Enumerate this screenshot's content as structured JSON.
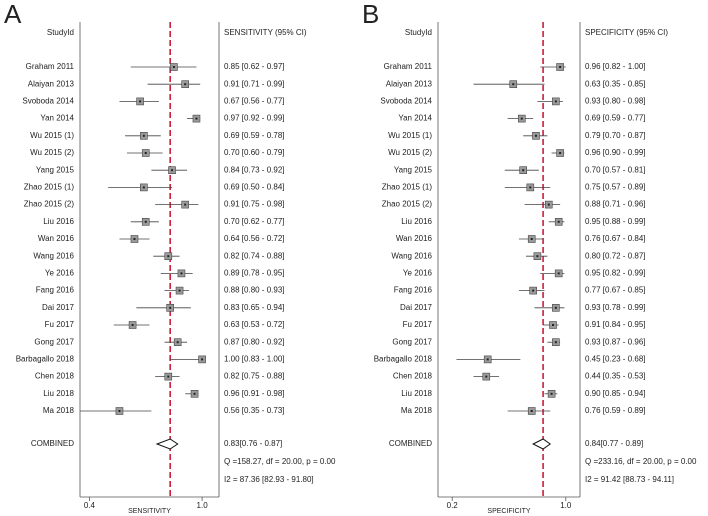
{
  "chart_data": [
    {
      "type": "forest",
      "panel_label": "A",
      "study_header": "StudyId",
      "estimate_header": "SENSITIVITY (95% CI)",
      "categories": [
        "Graham 2011",
        "Alaiyan 2013",
        "Svoboda 2014",
        "Yan 2014",
        "Wu 2015 (1)",
        "Wu 2015 (2)",
        "Yang 2015",
        "Zhao 2015 (1)",
        "Zhao 2015 (2)",
        "Liu 2016",
        "Wan 2016",
        "Wang 2016",
        "Ye 2016",
        "Fang 2016",
        "Dai 2017",
        "Fu 2017",
        "Gong 2017",
        "Barbagallo 2018",
        "Chen 2018",
        "Liu 2018",
        "Ma 2018"
      ],
      "values": [
        0.85,
        0.91,
        0.67,
        0.97,
        0.69,
        0.7,
        0.84,
        0.69,
        0.91,
        0.7,
        0.64,
        0.82,
        0.89,
        0.88,
        0.83,
        0.63,
        0.87,
        1.0,
        0.82,
        0.96,
        0.56
      ],
      "lower": [
        0.62,
        0.71,
        0.56,
        0.92,
        0.59,
        0.6,
        0.73,
        0.5,
        0.75,
        0.62,
        0.56,
        0.74,
        0.78,
        0.8,
        0.65,
        0.53,
        0.8,
        0.83,
        0.75,
        0.91,
        0.35
      ],
      "upper": [
        0.97,
        0.99,
        0.77,
        0.99,
        0.78,
        0.79,
        0.92,
        0.84,
        0.98,
        0.77,
        0.72,
        0.88,
        0.95,
        0.93,
        0.94,
        0.72,
        0.92,
        1.0,
        0.88,
        0.98,
        0.73
      ],
      "value_labels": [
        "0.85 [0.62 - 0.97]",
        "0.91 [0.71 - 0.99]",
        "0.67 [0.56 - 0.77]",
        "0.97 [0.92 - 0.99]",
        "0.69 [0.59 - 0.78]",
        "0.70 [0.60 - 0.79]",
        "0.84 [0.73 - 0.92]",
        "0.69 [0.50 - 0.84]",
        "0.91 [0.75 - 0.98]",
        "0.70 [0.62 - 0.77]",
        "0.64 [0.56 - 0.72]",
        "0.82 [0.74 - 0.88]",
        "0.89 [0.78 - 0.95]",
        "0.88 [0.80 - 0.93]",
        "0.83 [0.65 - 0.94]",
        "0.63 [0.53 - 0.72]",
        "0.87 [0.80 - 0.92]",
        "1.00 [0.83 - 1.00]",
        "0.82 [0.75 - 0.88]",
        "0.96 [0.91 - 0.98]",
        "0.56 [0.35 - 0.73]"
      ],
      "combined": {
        "label": "COMBINED",
        "value": 0.83,
        "lower": 0.76,
        "upper": 0.87,
        "value_label": "0.83[0.76 - 0.87]"
      },
      "statistics": [
        "Q =158.27, df = 20.00, p =  0.00",
        "I2 = 87.36 [82.93 - 91.80]"
      ],
      "xlabel": "SENSITIVITY",
      "xlim": [
        0.35,
        1.09
      ],
      "xticks": [
        0.4,
        {
          "value": 1,
          "label": "1.0"
        }
      ],
      "marker_color": "#9a9a9a",
      "line_color": "#c8102e"
    },
    {
      "type": "forest",
      "panel_label": "B",
      "study_header": "StudyId",
      "estimate_header": "SPECIFICITY (95% CI)",
      "categories": [
        "Graham 2011",
        "Alaiyan 2013",
        "Svoboda 2014",
        "Yan 2014",
        "Wu 2015 (1)",
        "Wu 2015 (2)",
        "Yang 2015",
        "Zhao 2015 (1)",
        "Zhao 2015 (2)",
        "Liu 2016",
        "Wan 2016",
        "Wang 2016",
        "Ye 2016",
        "Fang 2016",
        "Dai 2017",
        "Fu 2017",
        "Gong 2017",
        "Barbagallo 2018",
        "Chen 2018",
        "Liu 2018",
        "Ma 2018"
      ],
      "values": [
        0.96,
        0.63,
        0.93,
        0.69,
        0.79,
        0.96,
        0.7,
        0.75,
        0.88,
        0.95,
        0.76,
        0.8,
        0.95,
        0.77,
        0.93,
        0.91,
        0.93,
        0.45,
        0.44,
        0.9,
        0.76
      ],
      "lower": [
        0.82,
        0.35,
        0.8,
        0.59,
        0.7,
        0.9,
        0.57,
        0.57,
        0.71,
        0.88,
        0.67,
        0.72,
        0.82,
        0.67,
        0.78,
        0.84,
        0.87,
        0.23,
        0.35,
        0.85,
        0.59
      ],
      "upper": [
        1.0,
        0.85,
        0.98,
        0.77,
        0.87,
        0.99,
        0.81,
        0.89,
        0.96,
        0.99,
        0.84,
        0.87,
        0.99,
        0.85,
        0.99,
        0.95,
        0.96,
        0.68,
        0.53,
        0.94,
        0.89
      ],
      "value_labels": [
        "0.96 [0.82 - 1.00]",
        "0.63 [0.35 - 0.85]",
        "0.93 [0.80 - 0.98]",
        "0.69 [0.59 - 0.77]",
        "0.79 [0.70 - 0.87]",
        "0.96 [0.90 - 0.99]",
        "0.70 [0.57 - 0.81]",
        "0.75 [0.57 - 0.89]",
        "0.88 [0.71 - 0.96]",
        "0.95 [0.88 - 0.99]",
        "0.76 [0.67 - 0.84]",
        "0.80 [0.72 - 0.87]",
        "0.95 [0.82 - 0.99]",
        "0.77 [0.67 - 0.85]",
        "0.93 [0.78 - 0.99]",
        "0.91 [0.84 - 0.95]",
        "0.93 [0.87 - 0.96]",
        "0.45 [0.23 - 0.68]",
        "0.44 [0.35 - 0.53]",
        "0.90 [0.85 - 0.94]",
        "0.76 [0.59 - 0.89]"
      ],
      "combined": {
        "label": "COMBINED",
        "value": 0.84,
        "lower": 0.77,
        "upper": 0.89,
        "value_label": "0.84[0.77 - 0.89]"
      },
      "statistics": [
        "Q =233.16, df = 20.00, p =  0.00",
        "I2 = 91.42 [88.73 - 94.11]"
      ],
      "xlabel": "SPECIFICITY",
      "xlim": [
        0.1,
        1.1
      ],
      "xticks": [
        0.2,
        {
          "value": 1,
          "label": "1.0"
        }
      ],
      "marker_color": "#9a9a9a",
      "line_color": "#c8102e"
    }
  ]
}
